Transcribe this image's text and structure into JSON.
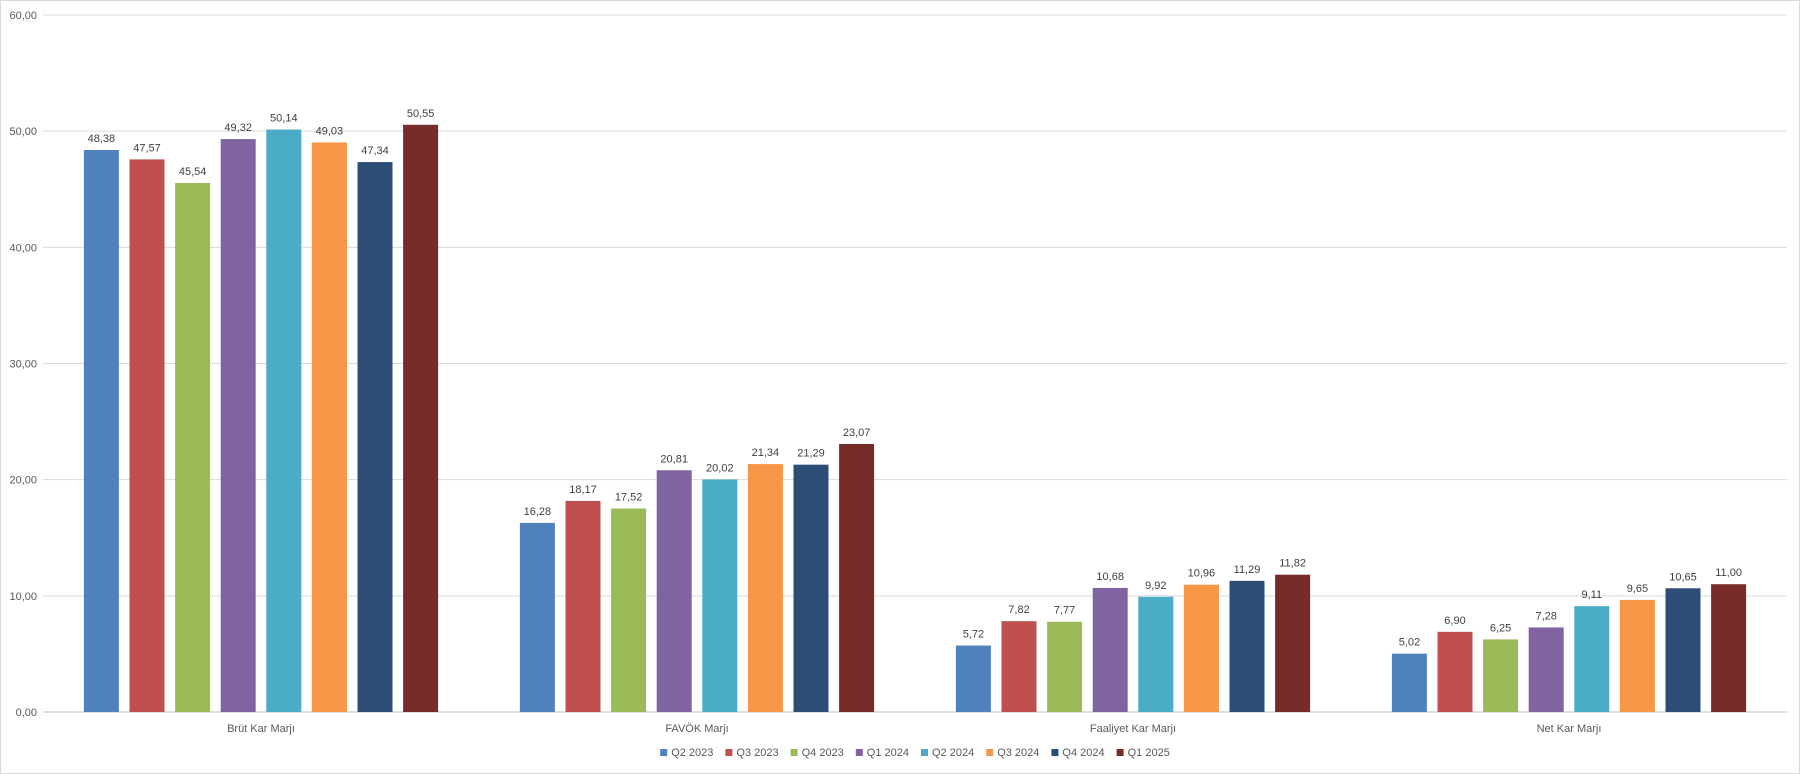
{
  "chart_data": {
    "type": "bar",
    "title": "",
    "xlabel": "",
    "ylabel": "",
    "ylim": [
      0,
      60
    ],
    "yticks": [
      "0,00",
      "10,00",
      "20,00",
      "30,00",
      "40,00",
      "50,00",
      "60,00"
    ],
    "grid": true,
    "legend_position": "bottom",
    "categories": [
      "Brüt Kar Marjı",
      "FAVÖK Marjı",
      "Faaliyet Kar Marjı",
      "Net Kar Marjı"
    ],
    "series": [
      {
        "name": "Q2 2023",
        "color": "#4f81bd",
        "values": [
          48.38,
          16.28,
          5.72,
          5.02
        ],
        "labels": [
          "48,38",
          "16,28",
          "5,72",
          "5,02"
        ]
      },
      {
        "name": "Q3 2023",
        "color": "#c0504d",
        "values": [
          47.57,
          18.17,
          7.82,
          6.9
        ],
        "labels": [
          "47,57",
          "18,17",
          "7,82",
          "6,90"
        ]
      },
      {
        "name": "Q4 2023",
        "color": "#9bbb59",
        "values": [
          45.54,
          17.52,
          7.77,
          6.25
        ],
        "labels": [
          "45,54",
          "17,52",
          "7,77",
          "6,25"
        ]
      },
      {
        "name": "Q1 2024",
        "color": "#8064a2",
        "values": [
          49.32,
          20.81,
          10.68,
          7.28
        ],
        "labels": [
          "49,32",
          "20,81",
          "10,68",
          "7,28"
        ]
      },
      {
        "name": "Q2 2024",
        "color": "#4bacc6",
        "values": [
          50.14,
          20.02,
          9.92,
          9.11
        ],
        "labels": [
          "50,14",
          "20,02",
          "9,92",
          "9,11"
        ]
      },
      {
        "name": "Q3 2024",
        "color": "#f79646",
        "values": [
          49.03,
          21.34,
          10.96,
          9.65
        ],
        "labels": [
          "49,03",
          "21,34",
          "10,96",
          "9,65"
        ]
      },
      {
        "name": "Q4 2024",
        "color": "#2c4d75",
        "values": [
          47.34,
          21.29,
          11.29,
          10.65
        ],
        "labels": [
          "47,34",
          "21,29",
          "11,29",
          "10,65"
        ]
      },
      {
        "name": "Q1 2025",
        "color": "#772c2a",
        "values": [
          50.55,
          23.07,
          11.82,
          11.0
        ],
        "labels": [
          "50,55",
          "23,07",
          "11,82",
          "11,00"
        ]
      }
    ]
  }
}
